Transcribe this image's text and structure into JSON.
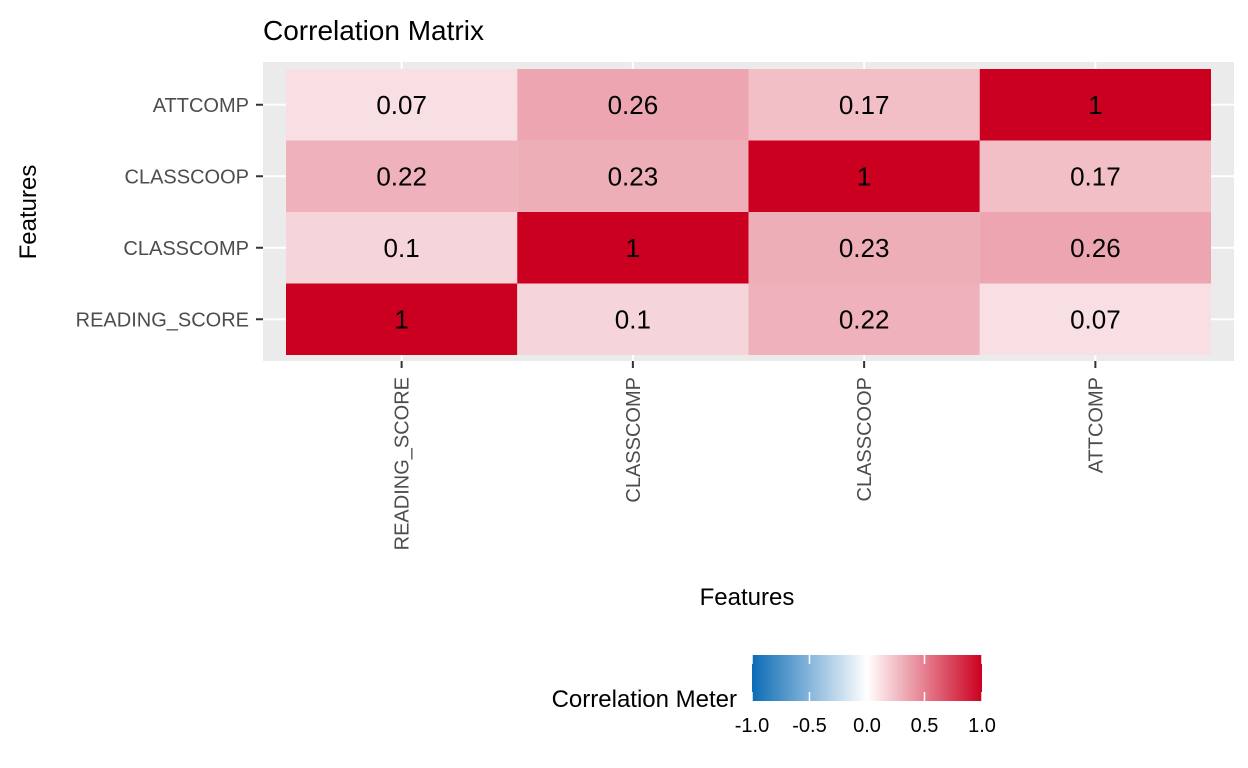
{
  "chart_data": {
    "type": "heatmap",
    "title": "Correlation Matrix",
    "xlabel": "Features",
    "ylabel": "Features",
    "x_categories": [
      "READING_SCORE",
      "CLASSCOMP",
      "CLASSCOOP",
      "ATTCOMP"
    ],
    "y_categories": [
      "READING_SCORE",
      "CLASSCOMP",
      "CLASSCOOP",
      "ATTCOMP"
    ],
    "cells": [
      {
        "x": "READING_SCORE",
        "y": "READING_SCORE",
        "value": 1,
        "label": "1"
      },
      {
        "x": "CLASSCOMP",
        "y": "READING_SCORE",
        "value": 0.1,
        "label": "0.1"
      },
      {
        "x": "CLASSCOOP",
        "y": "READING_SCORE",
        "value": 0.22,
        "label": "0.22"
      },
      {
        "x": "ATTCOMP",
        "y": "READING_SCORE",
        "value": 0.07,
        "label": "0.07"
      },
      {
        "x": "READING_SCORE",
        "y": "CLASSCOMP",
        "value": 0.1,
        "label": "0.1"
      },
      {
        "x": "CLASSCOMP",
        "y": "CLASSCOMP",
        "value": 1,
        "label": "1"
      },
      {
        "x": "CLASSCOOP",
        "y": "CLASSCOMP",
        "value": 0.23,
        "label": "0.23"
      },
      {
        "x": "ATTCOMP",
        "y": "CLASSCOMP",
        "value": 0.26,
        "label": "0.26"
      },
      {
        "x": "READING_SCORE",
        "y": "CLASSCOOP",
        "value": 0.22,
        "label": "0.22"
      },
      {
        "x": "CLASSCOMP",
        "y": "CLASSCOOP",
        "value": 0.23,
        "label": "0.23"
      },
      {
        "x": "CLASSCOOP",
        "y": "CLASSCOOP",
        "value": 1,
        "label": "1"
      },
      {
        "x": "ATTCOMP",
        "y": "CLASSCOOP",
        "value": 0.17,
        "label": "0.17"
      },
      {
        "x": "READING_SCORE",
        "y": "ATTCOMP",
        "value": 0.07,
        "label": "0.07"
      },
      {
        "x": "CLASSCOMP",
        "y": "ATTCOMP",
        "value": 0.26,
        "label": "0.26"
      },
      {
        "x": "CLASSCOOP",
        "y": "ATTCOMP",
        "value": 0.17,
        "label": "0.17"
      },
      {
        "x": "ATTCOMP",
        "y": "ATTCOMP",
        "value": 1,
        "label": "1"
      }
    ],
    "color_scale": {
      "low": "#0B6CB5",
      "mid": "#FFFFFF",
      "high": "#CB0020",
      "limits": [
        -1,
        1
      ]
    },
    "legend": {
      "title": "Correlation Meter",
      "ticks": [
        -1.0,
        -0.5,
        0.0,
        0.5,
        1.0
      ],
      "tick_labels": [
        "-1.0",
        "-0.5",
        "0.0",
        "0.5",
        "1.0"
      ],
      "placement": "bottom"
    },
    "panel_background": "#EBEBEB",
    "grid": true
  }
}
